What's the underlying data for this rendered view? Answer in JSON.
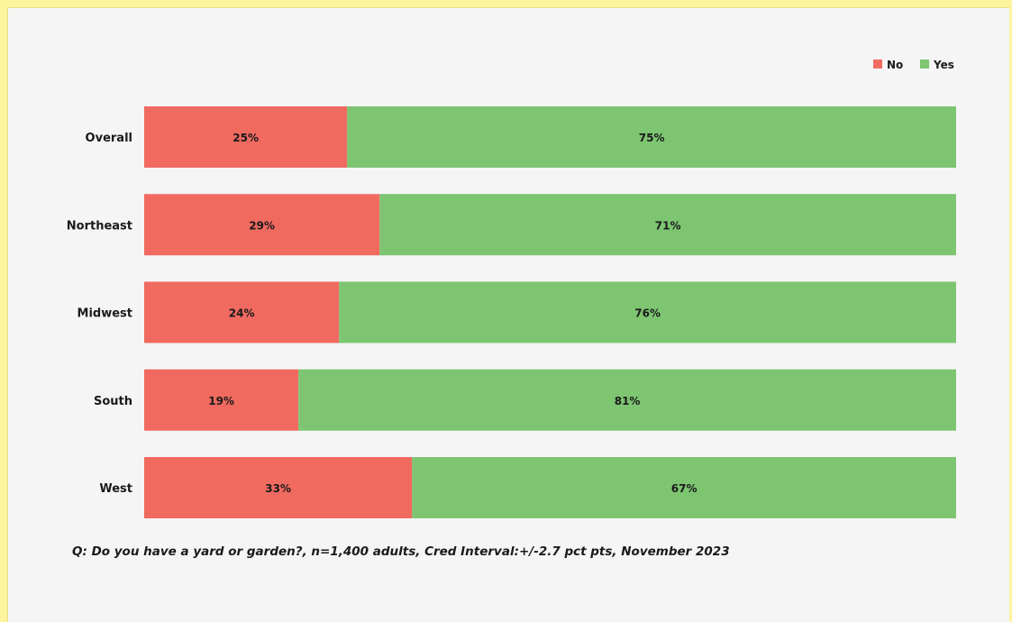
{
  "colors": {
    "no": "#f06a60",
    "yes": "#7dc571"
  },
  "chart_data": {
    "type": "bar",
    "orientation": "horizontal",
    "stacked": true,
    "percent_stacked": true,
    "categories": [
      "Overall",
      "Northeast",
      "Midwest",
      "South",
      "West"
    ],
    "series": [
      {
        "name": "No",
        "values": [
          25,
          29,
          24,
          19,
          33
        ],
        "labels": [
          "25%",
          "29%",
          "24%",
          "19%",
          "33%"
        ]
      },
      {
        "name": "Yes",
        "values": [
          75,
          71,
          76,
          81,
          67
        ],
        "labels": [
          "75%",
          "71%",
          "76%",
          "81%",
          "67%"
        ]
      }
    ],
    "xlim": [
      0,
      100
    ],
    "grid": false,
    "legend_position": "top-right"
  },
  "footnote": "Q:  Do you have a yard or garden?, n=1,400 adults, Cred Interval:+/-2.7 pct pts, November 2023"
}
